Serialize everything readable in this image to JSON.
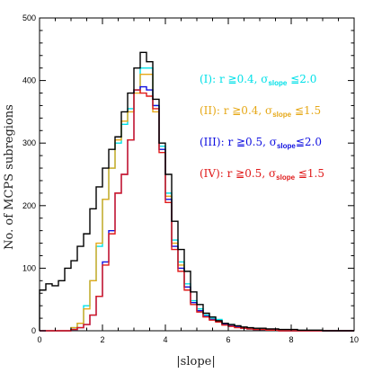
{
  "chart_data": {
    "type": "line",
    "step": true,
    "xlabel": "|slope|",
    "ylabel": "No. of MCPS subregions",
    "xlim": [
      0,
      10
    ],
    "ylim": [
      0,
      500
    ],
    "xticks": [
      0,
      2,
      4,
      6,
      8,
      10
    ],
    "yticks": [
      0,
      100,
      200,
      300,
      400,
      500
    ],
    "bin_width": 0.2,
    "x": [
      0.0,
      0.2,
      0.4,
      0.6,
      0.8,
      1.0,
      1.2,
      1.4,
      1.6,
      1.8,
      2.0,
      2.2,
      2.4,
      2.6,
      2.8,
      3.0,
      3.2,
      3.4,
      3.6,
      3.8,
      4.0,
      4.2,
      4.4,
      4.6,
      4.8,
      5.0,
      5.2,
      5.4,
      5.6,
      5.8,
      6.0,
      6.2,
      6.4,
      6.6,
      6.8,
      7.0,
      7.2,
      7.4,
      7.6,
      7.8,
      8.0,
      8.2,
      8.4,
      8.6,
      8.8,
      9.0,
      9.2,
      9.4,
      9.6,
      9.8
    ],
    "series": [
      {
        "name": "(I): r ≧0.4, σslope ≦2.0",
        "legend": {
          "label": "(I):  r  ≧0.4,  σ",
          "sub": "slope",
          "tail": " ≦2.0"
        },
        "color": "#00e0e8",
        "values": [
          0,
          0,
          0,
          0,
          0,
          5,
          12,
          40,
          80,
          135,
          210,
          260,
          300,
          330,
          355,
          385,
          420,
          420,
          360,
          295,
          220,
          145,
          110,
          75,
          48,
          35,
          25,
          20,
          18,
          12,
          10,
          7,
          5,
          4,
          3,
          2,
          2,
          1,
          1,
          0,
          0,
          0,
          0,
          0,
          0,
          0,
          0,
          0,
          0,
          0
        ]
      },
      {
        "name": "(II): r ≧0.4, σslope ≦1.5",
        "legend": {
          "label": "(II):  r  ≧0.4,  σ",
          "sub": "slope",
          "tail": " ≦1.5"
        },
        "color": "#e6a817",
        "values": [
          0,
          0,
          0,
          0,
          0,
          5,
          12,
          35,
          80,
          140,
          210,
          260,
          305,
          335,
          350,
          380,
          410,
          410,
          350,
          290,
          215,
          140,
          105,
          70,
          45,
          32,
          23,
          18,
          15,
          10,
          8,
          6,
          4,
          3,
          2,
          2,
          1,
          1,
          0,
          0,
          0,
          0,
          0,
          0,
          0,
          0,
          0,
          0,
          0,
          0
        ]
      },
      {
        "name": "(III): r ≧0.5, σslope ≦2.0",
        "legend": {
          "label": "(III):  r  ≧0.5,  σ",
          "sub": "slope",
          "tail": "≦2.0"
        },
        "color": "#1010e0",
        "values": [
          0,
          0,
          0,
          0,
          0,
          2,
          5,
          10,
          25,
          55,
          110,
          160,
          220,
          250,
          305,
          385,
          390,
          385,
          360,
          290,
          210,
          135,
          100,
          70,
          45,
          32,
          23,
          18,
          15,
          10,
          8,
          6,
          4,
          3,
          2,
          2,
          1,
          1,
          0,
          0,
          0,
          0,
          0,
          0,
          0,
          0,
          0,
          0,
          0,
          0
        ]
      },
      {
        "name": "(IV): r ≧0.5, σslope ≦1.5",
        "legend": {
          "label": "(IV):  r  ≧0.5,  σ",
          "sub": "slope",
          "tail": " ≦1.5"
        },
        "color": "#e01a1a",
        "values": [
          0,
          0,
          0,
          0,
          0,
          2,
          5,
          10,
          25,
          55,
          105,
          155,
          220,
          250,
          305,
          385,
          380,
          375,
          355,
          285,
          205,
          130,
          95,
          65,
          42,
          30,
          22,
          17,
          14,
          9,
          7,
          5,
          4,
          3,
          2,
          2,
          1,
          1,
          0,
          0,
          0,
          0,
          0,
          0,
          0,
          0,
          0,
          0,
          0,
          0
        ]
      },
      {
        "name": "all",
        "color": "#000000",
        "values": [
          65,
          75,
          72,
          80,
          100,
          112,
          135,
          155,
          195,
          230,
          260,
          290,
          310,
          350,
          380,
          420,
          445,
          430,
          370,
          300,
          250,
          175,
          130,
          95,
          62,
          42,
          28,
          22,
          16,
          12,
          10,
          8,
          6,
          5,
          4,
          4,
          3,
          3,
          2,
          2,
          2,
          1,
          1,
          1,
          1,
          0,
          0,
          0,
          0,
          0
        ]
      }
    ]
  }
}
